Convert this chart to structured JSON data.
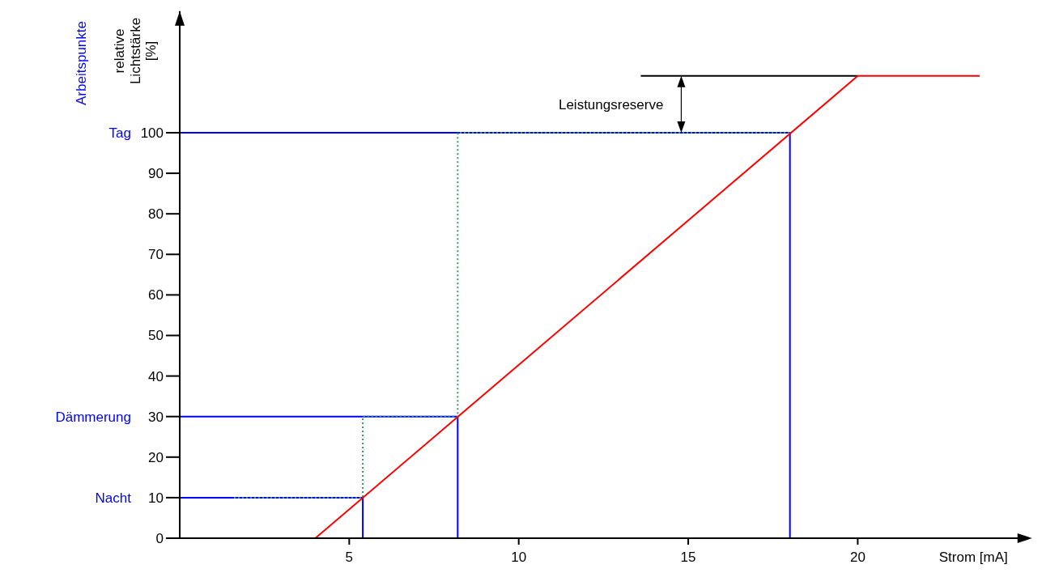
{
  "chart_data": {
    "type": "line",
    "xlabel": "Strom [mA]",
    "ylabel": "relative Lichtstärke [%]",
    "xlim": [
      0,
      25
    ],
    "ylim": [
      0,
      130
    ],
    "xticks": [
      5,
      10,
      15,
      20
    ],
    "yticks": [
      0,
      10,
      20,
      30,
      40,
      50,
      60,
      70,
      80,
      90,
      100
    ],
    "series": [
      {
        "color": "#0000ff",
        "x": [
          0,
          18,
          18
        ],
        "values": [
          100,
          100,
          0
        ],
        "line_style": "solid"
      },
      {
        "color": "#0000ff",
        "x": [
          0,
          8.2,
          8.2
        ],
        "values": [
          30,
          30,
          0
        ],
        "line_style": "solid"
      },
      {
        "color": "#0000ff",
        "x": [
          0,
          5.4,
          5.4
        ],
        "values": [
          10,
          10,
          0
        ],
        "line_style": "solid"
      },
      {
        "color": "#339966",
        "x": [
          1.6,
          5.4,
          5.4,
          8.2,
          8.2,
          18
        ],
        "values": [
          10,
          10,
          30,
          30,
          100,
          100
        ],
        "line_style": "dotted"
      },
      {
        "color": "#000000",
        "x": [
          13.6,
          20
        ],
        "values": [
          114,
          114
        ],
        "line_style": "solid"
      },
      {
        "color": "#ff0000",
        "x": [
          0,
          4,
          20,
          23.6
        ],
        "values": [
          0,
          0,
          114,
          114
        ],
        "line_style": "solid"
      }
    ],
    "annotations": [
      "Tag",
      "Dämmerung",
      "Nacht",
      "Leistungsreserve",
      "Arbeitspunkte"
    ],
    "grid": false,
    "marker": "none"
  }
}
